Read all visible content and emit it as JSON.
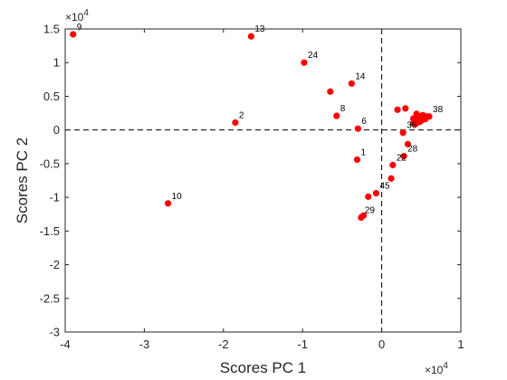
{
  "chart_data": {
    "type": "scatter",
    "xlabel": "Scores PC 1",
    "ylabel": "Scores PC 2",
    "x_multiplier_label": "×10^4",
    "y_multiplier_label": "×10^4",
    "xlim": [
      -4,
      1
    ],
    "ylim": [
      -3,
      1.5
    ],
    "xticks": [
      -4,
      -3,
      -2,
      -1,
      0,
      1
    ],
    "xtick_labels": [
      "-4",
      "-3",
      "-2",
      "-1",
      "0",
      "1"
    ],
    "yticks": [
      -3,
      -2.5,
      -2,
      -1.5,
      -1,
      -0.5,
      0,
      0.5,
      1,
      1.5
    ],
    "ytick_labels": [
      "-3",
      "-2.5",
      "-2",
      "-1.5",
      "-1",
      "-0.5",
      "0",
      "0.5",
      "1",
      "1.5"
    ],
    "grid": false,
    "reference_lines": {
      "x": 0,
      "y": 0,
      "style": "dashed"
    },
    "colors": {
      "marker": "#ff0000",
      "axis": "#262626",
      "reference": "#000000"
    },
    "points": [
      {
        "label": "9",
        "x": -3.9,
        "y": 1.42
      },
      {
        "label": "13",
        "x": -1.65,
        "y": 1.39
      },
      {
        "label": "24",
        "x": -0.98,
        "y": 1.0
      },
      {
        "label": "14",
        "x": -0.38,
        "y": 0.69
      },
      {
        "label": "",
        "x": -0.65,
        "y": 0.57
      },
      {
        "label": "8",
        "x": -0.57,
        "y": 0.21
      },
      {
        "label": "2",
        "x": -1.85,
        "y": 0.11
      },
      {
        "label": "6",
        "x": -0.3,
        "y": 0.02
      },
      {
        "label": "1",
        "x": -0.31,
        "y": -0.44
      },
      {
        "label": "10",
        "x": -2.7,
        "y": -1.09
      },
      {
        "label": "29",
        "x": -0.26,
        "y": -1.3
      },
      {
        "label": "",
        "x": -0.23,
        "y": -1.27
      },
      {
        "label": "45",
        "x": -0.07,
        "y": -0.94
      },
      {
        "label": "",
        "x": -0.17,
        "y": -0.99
      },
      {
        "label": "22",
        "x": 0.14,
        "y": -0.52
      },
      {
        "label": "",
        "x": 0.12,
        "y": -0.72
      },
      {
        "label": "28",
        "x": 0.28,
        "y": -0.39
      },
      {
        "label": "",
        "x": 0.33,
        "y": -0.21
      },
      {
        "label": "36",
        "x": 0.27,
        "y": -0.04
      },
      {
        "label": "",
        "x": 0.4,
        "y": 0.1
      },
      {
        "label": "",
        "x": 0.45,
        "y": 0.15
      },
      {
        "label": "",
        "x": 0.4,
        "y": 0.17
      },
      {
        "label": "",
        "x": 0.48,
        "y": 0.12
      },
      {
        "label": "",
        "x": 0.5,
        "y": 0.18
      },
      {
        "label": "",
        "x": 0.44,
        "y": 0.24
      },
      {
        "label": "",
        "x": 0.52,
        "y": 0.22
      },
      {
        "label": "",
        "x": 0.56,
        "y": 0.2
      },
      {
        "label": "",
        "x": 0.47,
        "y": 0.2
      },
      {
        "label": "",
        "x": 0.43,
        "y": 0.09
      },
      {
        "label": "",
        "x": 0.5,
        "y": 0.14
      },
      {
        "label": "",
        "x": 0.55,
        "y": 0.16
      },
      {
        "label": "38",
        "x": 0.6,
        "y": 0.2
      },
      {
        "label": "",
        "x": 0.2,
        "y": 0.3
      },
      {
        "label": "",
        "x": 0.3,
        "y": 0.32
      }
    ]
  }
}
